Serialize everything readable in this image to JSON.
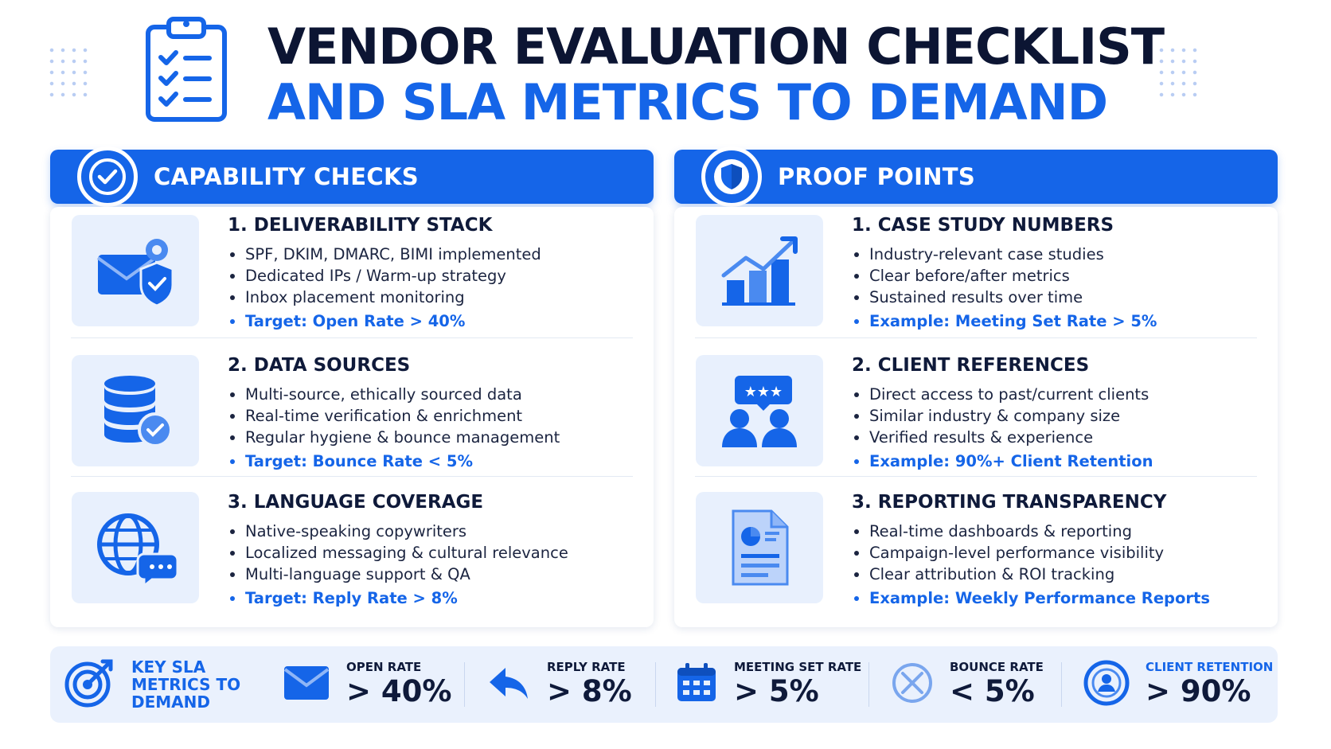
{
  "header": {
    "title_line1": "VENDOR EVALUATION CHECKLIST",
    "title_line2": "AND SLA METRICS TO DEMAND"
  },
  "colors": {
    "accent": "#1565e8",
    "dark": "#0c1533",
    "soft": "#e8f0fd"
  },
  "capability_checks": {
    "title": "CAPABILITY CHECKS",
    "icon": "check-circle-icon",
    "items": [
      {
        "title": "1. DELIVERABILITY STACK",
        "icon": "envelope-shield-gear-icon",
        "bullets": [
          "SPF, DKIM, DMARC, BIMI implemented",
          "Dedicated IPs / Warm-up strategy",
          "Inbox placement monitoring"
        ],
        "target": "Target: Open Rate > 40%"
      },
      {
        "title": "2. DATA SOURCES",
        "icon": "database-check-icon",
        "bullets": [
          "Multi-source, ethically sourced data",
          "Real-time verification & enrichment",
          "Regular hygiene & bounce management"
        ],
        "target": "Target: Bounce Rate < 5%"
      },
      {
        "title": "3. LANGUAGE COVERAGE",
        "icon": "globe-chat-icon",
        "bullets": [
          "Native-speaking copywriters",
          "Localized messaging & cultural relevance",
          "Multi-language support & QA"
        ],
        "target": "Target: Reply Rate > 8%"
      }
    ]
  },
  "proof_points": {
    "title": "PROOF POINTS",
    "icon": "shield-icon",
    "items": [
      {
        "title": "1. CASE STUDY NUMBERS",
        "icon": "bar-chart-trend-icon",
        "bullets": [
          "Industry-relevant case studies",
          "Clear before/after metrics",
          "Sustained results over time"
        ],
        "target": "Example: Meeting Set Rate > 5%"
      },
      {
        "title": "2. CLIENT REFERENCES",
        "icon": "people-rating-icon",
        "bullets": [
          "Direct access to past/current clients",
          "Similar industry & company size",
          "Verified results & experience"
        ],
        "target": "Example: 90%+ Client Retention"
      },
      {
        "title": "3. REPORTING TRANSPARENCY",
        "icon": "report-document-icon",
        "bullets": [
          "Real-time dashboards & reporting",
          "Campaign-level performance visibility",
          "Clear attribution & ROI tracking"
        ],
        "target": "Example: Weekly Performance Reports"
      }
    ]
  },
  "sla": {
    "key_label": "KEY SLA METRICS TO DEMAND",
    "key_icon": "target-icon",
    "metrics": [
      {
        "label": "OPEN RATE",
        "value": "> 40%",
        "icon": "envelope-icon"
      },
      {
        "label": "REPLY RATE",
        "value": "> 8%",
        "icon": "reply-arrow-icon"
      },
      {
        "label": "MEETING SET RATE",
        "value": "> 5%",
        "icon": "calendar-icon"
      },
      {
        "label": "BOUNCE RATE",
        "value": "< 5%",
        "icon": "x-circle-icon"
      },
      {
        "label": "CLIENT RETENTION",
        "value": "> 90%",
        "icon": "user-circle-icon"
      }
    ]
  }
}
